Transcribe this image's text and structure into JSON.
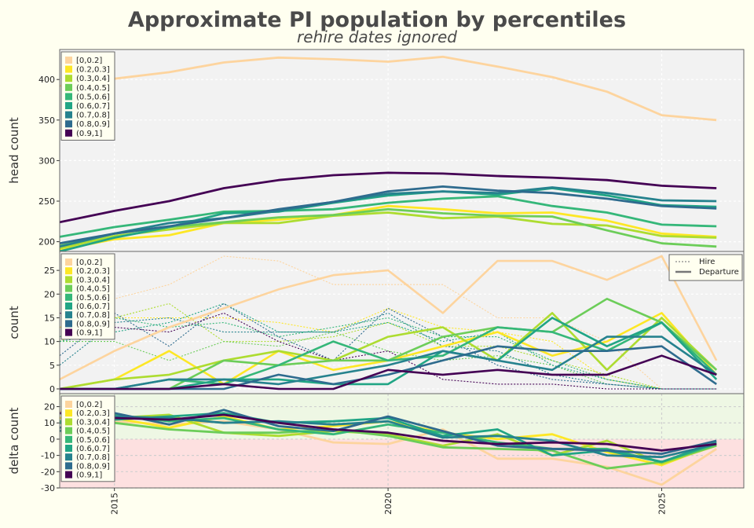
{
  "title": "Approximate PI population by percentiles",
  "subtitle": "rehire dates ignored",
  "colors": {
    "page_bg": "#fffff0",
    "plot_bg": "#f2f2f2",
    "positive_band": "#eef7e4",
    "negative_band": "#fde0e0",
    "series": [
      "#fdd49e",
      "#fde725",
      "#addc30",
      "#6ccd59",
      "#35b779",
      "#21a585",
      "#26828e",
      "#2e6b8e",
      "#440154"
    ]
  },
  "legend": {
    "items": [
      "[0,0.2]",
      "(0.2,0.3]",
      "(0.3,0.4]",
      "(0.4,0.5]",
      "(0.5,0.6]",
      "(0.6,0.7]",
      "(0.7,0.8]",
      "(0.8,0.9]",
      "(0.9,1]"
    ],
    "style_items": [
      "Hire",
      "Departure"
    ]
  },
  "chart_data": [
    {
      "type": "line",
      "ylabel": "head count",
      "ylim": [
        188,
        437
      ],
      "yticks": [
        200,
        250,
        300,
        350,
        400
      ],
      "xlim": [
        2014.0,
        2026.5
      ],
      "grid": true,
      "legend_position": "top-left",
      "x": [
        2014,
        2015,
        2016,
        2017,
        2018,
        2019,
        2020,
        2021,
        2022,
        2023,
        2024,
        2025,
        2026
      ],
      "series": [
        {
          "name": "[0,0.2]",
          "values": [
            392,
            401,
            409,
            421,
            427,
            425,
            422,
            428,
            416,
            403,
            385,
            356,
            350
          ]
        },
        {
          "name": "(0.2,0.3]",
          "values": [
            190,
            203,
            208,
            223,
            227,
            233,
            244,
            240,
            235,
            236,
            226,
            210,
            206
          ]
        },
        {
          "name": "(0.3,0.4]",
          "values": [
            192,
            207,
            215,
            223,
            223,
            232,
            236,
            229,
            231,
            222,
            220,
            207,
            205
          ]
        },
        {
          "name": "(0.4,0.5]",
          "values": [
            195,
            210,
            218,
            224,
            230,
            233,
            240,
            235,
            232,
            231,
            214,
            198,
            194
          ]
        },
        {
          "name": "(0.5,0.6]",
          "values": [
            206,
            218,
            227,
            237,
            238,
            240,
            248,
            253,
            256,
            244,
            236,
            221,
            219
          ]
        },
        {
          "name": "(0.6,0.7]",
          "values": [
            188,
            205,
            218,
            235,
            237,
            248,
            257,
            262,
            258,
            266,
            257,
            245,
            243
          ]
        },
        {
          "name": "(0.7,0.8]",
          "values": [
            194,
            210,
            223,
            229,
            238,
            249,
            259,
            262,
            260,
            267,
            260,
            251,
            250
          ]
        },
        {
          "name": "(0.8,0.9]",
          "values": [
            198,
            210,
            219,
            229,
            240,
            249,
            262,
            268,
            263,
            260,
            253,
            244,
            241
          ]
        },
        {
          "name": "(0.9,1]",
          "values": [
            224,
            238,
            250,
            266,
            276,
            282,
            285,
            284,
            281,
            279,
            276,
            269,
            266
          ]
        }
      ]
    },
    {
      "type": "line",
      "ylabel": "count",
      "ylim": [
        -1,
        29
      ],
      "yticks": [
        0,
        5,
        10,
        15,
        20,
        25
      ],
      "xlim": [
        2014.0,
        2026.5
      ],
      "grid": true,
      "legend_position": "top-left",
      "x": [
        2014,
        2015,
        2016,
        2017,
        2018,
        2019,
        2020,
        2021,
        2022,
        2023,
        2024,
        2025,
        2026
      ],
      "series": [
        {
          "name": "[0,0.2]",
          "hire": [
            20,
            19,
            22,
            28,
            27,
            22,
            22,
            22,
            15,
            15,
            10,
            0,
            0
          ],
          "departure": [
            2,
            8,
            13,
            17,
            21,
            24,
            25,
            16,
            27,
            27,
            23,
            28,
            6
          ]
        },
        {
          "name": "(0.2,0.3]",
          "hire": [
            13,
            15,
            15,
            15,
            14,
            12,
            17,
            13,
            12,
            10,
            2,
            0,
            0
          ],
          "departure": [
            0,
            2,
            8,
            1,
            8,
            4,
            6,
            9,
            12,
            7,
            10,
            16,
            3
          ]
        },
        {
          "name": "(0.3,0.4]",
          "hire": [
            10,
            15,
            18,
            10,
            10,
            11,
            14,
            9,
            9,
            6,
            3,
            0,
            0
          ],
          "departure": [
            0,
            2,
            3,
            6,
            8,
            6,
            11,
            13,
            6,
            16,
            4,
            15,
            4
          ]
        },
        {
          "name": "(0.4,0.5]",
          "hire": [
            10,
            10,
            6,
            10,
            9,
            12,
            8,
            6,
            7,
            5,
            1,
            0,
            0
          ],
          "departure": [
            0,
            0,
            0,
            6,
            5,
            6,
            6,
            11,
            13,
            12,
            19,
            14,
            4
          ]
        },
        {
          "name": "(0.5,0.6]",
          "hire": [
            11,
            15,
            13,
            14,
            11,
            13,
            15,
            11,
            11,
            6,
            2,
            0,
            0
          ],
          "departure": [
            0,
            0,
            2,
            1,
            5,
            10,
            6,
            7,
            13,
            12,
            8,
            14,
            3
          ]
        },
        {
          "name": "(0.6,0.7]",
          "hire": [
            10,
            12,
            14,
            18,
            12,
            12,
            14,
            10,
            12,
            5,
            2,
            0,
            0
          ],
          "departure": [
            0,
            0,
            0,
            2,
            2,
            1,
            1,
            8,
            6,
            15,
            9,
            14,
            2
          ]
        },
        {
          "name": "(0.7,0.8]",
          "hire": [
            5,
            14,
            15,
            12,
            12,
            12,
            16,
            9,
            8,
            3,
            1,
            0,
            0
          ],
          "departure": [
            0,
            0,
            2,
            2,
            1,
            3,
            5,
            8,
            6,
            4,
            11,
            11,
            3
          ]
        },
        {
          "name": "(0.8,0.9]",
          "hire": [
            7,
            16,
            9,
            18,
            11,
            6,
            17,
            11,
            5,
            2,
            1,
            0,
            0
          ],
          "departure": [
            0,
            0,
            0,
            0,
            3,
            1,
            3,
            6,
            9,
            8,
            8,
            9,
            1
          ]
        },
        {
          "name": "(0.9,1]",
          "hire": [
            16,
            13,
            12,
            16,
            10,
            6,
            8,
            2,
            1,
            1,
            0,
            0,
            0
          ],
          "departure": [
            0,
            0,
            0,
            1,
            0,
            0,
            4,
            3,
            4,
            3,
            3,
            7,
            3
          ]
        }
      ]
    },
    {
      "type": "line",
      "ylabel": "delta count",
      "ylim": [
        -30,
        28
      ],
      "yticks": [
        -30,
        -20,
        -10,
        0,
        10,
        20
      ],
      "xlim": [
        2014.0,
        2026.5
      ],
      "grid": true,
      "legend_position": "top-left",
      "x": [
        2014,
        2015,
        2016,
        2017,
        2018,
        2019,
        2020,
        2021,
        2022,
        2023,
        2024,
        2025,
        2026
      ],
      "xticks": [
        "2015",
        "2020",
        "2025"
      ],
      "series": [
        {
          "name": "[0,0.2]",
          "values": [
            17,
            11,
            9,
            11,
            6,
            -2,
            -3,
            6,
            -12,
            -12,
            -17,
            -28,
            -6
          ]
        },
        {
          "name": "(0.2,0.3]",
          "values": [
            13,
            13,
            7,
            14,
            6,
            8,
            11,
            4,
            0,
            3,
            -8,
            -16,
            -3
          ]
        },
        {
          "name": "(0.3,0.4]",
          "values": [
            10,
            13,
            15,
            4,
            2,
            5,
            3,
            -4,
            3,
            -10,
            -1,
            -15,
            -4
          ]
        },
        {
          "name": "(0.4,0.5]",
          "values": [
            10,
            10,
            6,
            4,
            4,
            6,
            2,
            -5,
            -6,
            -7,
            -18,
            -14,
            -4
          ]
        },
        {
          "name": "(0.5,0.6]",
          "values": [
            11,
            15,
            11,
            13,
            6,
            3,
            9,
            4,
            -2,
            -6,
            -6,
            -14,
            -3
          ]
        },
        {
          "name": "(0.6,0.7]",
          "values": [
            10,
            12,
            14,
            16,
            10,
            11,
            13,
            2,
            6,
            -10,
            -7,
            -14,
            -2
          ]
        },
        {
          "name": "(0.7,0.8]",
          "values": [
            5,
            14,
            13,
            10,
            11,
            9,
            11,
            1,
            2,
            -1,
            -10,
            -11,
            -3
          ]
        },
        {
          "name": "(0.8,0.9]",
          "values": [
            7,
            16,
            9,
            18,
            8,
            5,
            14,
            5,
            -4,
            -6,
            -7,
            -9,
            -1
          ]
        },
        {
          "name": "(0.9,1]",
          "values": [
            16,
            13,
            12,
            15,
            10,
            6,
            4,
            -1,
            -3,
            -2,
            -3,
            -7,
            -3
          ]
        }
      ]
    }
  ]
}
